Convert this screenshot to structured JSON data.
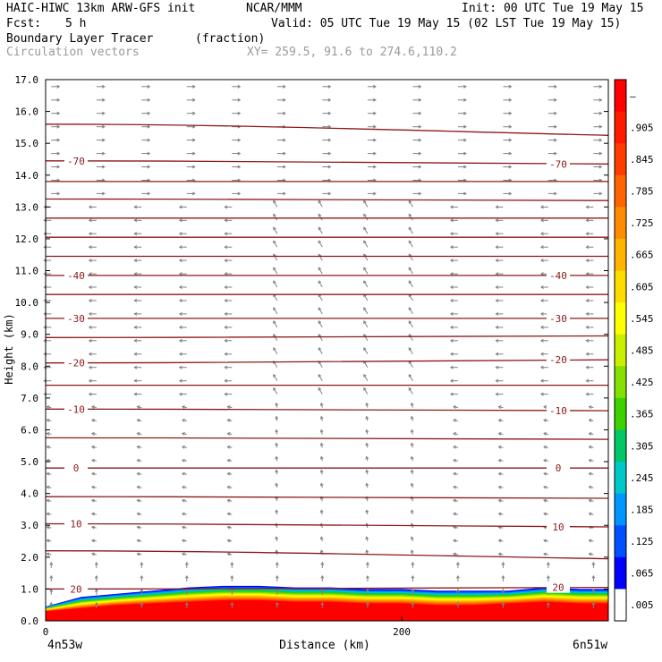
{
  "header": {
    "model": "HAIC-HIWC 13km ARW-GFS init",
    "org": "NCAR/MMM",
    "init": "Init: 00 UTC Tue 19 May 15",
    "fcst_label": "Fcst:",
    "fcst_value": "5 h",
    "valid": "Valid: 05 UTC Tue 19 May 15 (02 LST Tue 19 May 15)",
    "field": "Boundary Layer Tracer",
    "units": "(fraction)",
    "overlay": "Circulation vectors",
    "xy": "XY= 259.5, 91.6 to 274.6,110.2"
  },
  "chart_data": {
    "type": "heatmap",
    "title": "Boundary Layer Tracer",
    "xlabel": "Distance (km)",
    "ylabel": "Height (km)",
    "xlim": [
      0,
      316
    ],
    "ylim": [
      0,
      17
    ],
    "x_ticks": [
      {
        "value": 0,
        "label": "0"
      },
      {
        "value": 200,
        "label": "200"
      }
    ],
    "x_endpoints": {
      "left": "4n53w",
      "right": "6n51w"
    },
    "y_ticks": [
      {
        "value": 0,
        "label": "0.0"
      },
      {
        "value": 1,
        "label": "1.0"
      },
      {
        "value": 2,
        "label": "2.0"
      },
      {
        "value": 3,
        "label": "3.0"
      },
      {
        "value": 4,
        "label": "4.0"
      },
      {
        "value": 5,
        "label": "5.0"
      },
      {
        "value": 6,
        "label": "6.0"
      },
      {
        "value": 7,
        "label": "7.0"
      },
      {
        "value": 8,
        "label": "8.0"
      },
      {
        "value": 9,
        "label": "9.0"
      },
      {
        "value": 10,
        "label": "10.0"
      },
      {
        "value": 11,
        "label": "11.0"
      },
      {
        "value": 12,
        "label": "12.0"
      },
      {
        "value": 13,
        "label": "13.0"
      },
      {
        "value": 14,
        "label": "14.0"
      },
      {
        "value": 15,
        "label": "15.0"
      },
      {
        "value": 16,
        "label": "16.0"
      },
      {
        "value": 17,
        "label": "17.0"
      }
    ],
    "colorbar": {
      "labels": [
        "–",
        ".905",
        ".845",
        ".785",
        ".725",
        ".665",
        ".605",
        ".545",
        ".485",
        ".425",
        ".365",
        ".305",
        ".245",
        ".185",
        ".125",
        ".065",
        ".005"
      ],
      "colors": [
        "#ff0000",
        "#ff1a00",
        "#ff3c00",
        "#ff6400",
        "#ff8c00",
        "#ffb400",
        "#ffdc00",
        "#ffff00",
        "#c8f000",
        "#82e100",
        "#3cd200",
        "#00c864",
        "#00c8c8",
        "#0096ff",
        "#0050ff",
        "#0000ff",
        "#ffffff"
      ]
    },
    "tracer_top": [
      [
        0,
        0.45
      ],
      [
        20,
        0.75
      ],
      [
        40,
        0.85
      ],
      [
        60,
        0.95
      ],
      [
        80,
        1.05
      ],
      [
        100,
        1.1
      ],
      [
        120,
        1.1
      ],
      [
        140,
        1.05
      ],
      [
        160,
        1.05
      ],
      [
        180,
        1.0
      ],
      [
        200,
        1.0
      ],
      [
        220,
        0.95
      ],
      [
        240,
        0.95
      ],
      [
        260,
        0.95
      ],
      [
        280,
        1.05
      ],
      [
        300,
        1.0
      ],
      [
        316,
        1.0
      ]
    ],
    "tracer_red_top": [
      [
        0,
        0.3
      ],
      [
        20,
        0.4
      ],
      [
        40,
        0.5
      ],
      [
        60,
        0.55
      ],
      [
        80,
        0.6
      ],
      [
        100,
        0.65
      ],
      [
        120,
        0.65
      ],
      [
        140,
        0.6
      ],
      [
        160,
        0.6
      ],
      [
        180,
        0.55
      ],
      [
        200,
        0.55
      ],
      [
        220,
        0.5
      ],
      [
        240,
        0.5
      ],
      [
        260,
        0.55
      ],
      [
        280,
        0.6
      ],
      [
        300,
        0.55
      ],
      [
        316,
        0.55
      ]
    ],
    "isotherms": [
      {
        "label": "20",
        "y0": 1.0,
        "y1": 1.05
      },
      {
        "label": "",
        "y0": 2.2,
        "y1": 1.95
      },
      {
        "label": "10",
        "y0": 3.05,
        "y1": 2.95
      },
      {
        "label": "",
        "y0": 3.9,
        "y1": 3.85
      },
      {
        "label": "0",
        "y0": 4.8,
        "y1": 4.8
      },
      {
        "label": "",
        "y0": 5.75,
        "y1": 5.7
      },
      {
        "label": "-10",
        "y0": 6.65,
        "y1": 6.6
      },
      {
        "label": "",
        "y0": 7.4,
        "y1": 7.4
      },
      {
        "label": "-20",
        "y0": 8.1,
        "y1": 8.2
      },
      {
        "label": "",
        "y0": 8.9,
        "y1": 8.95
      },
      {
        "label": "-30",
        "y0": 9.5,
        "y1": 9.5
      },
      {
        "label": "",
        "y0": 10.25,
        "y1": 10.25
      },
      {
        "label": "-40",
        "y0": 10.85,
        "y1": 10.85
      },
      {
        "label": "",
        "y0": 11.45,
        "y1": 11.45
      },
      {
        "label": "",
        "y0": 12.05,
        "y1": 12.05
      },
      {
        "label": "",
        "y0": 12.65,
        "y1": 12.65
      },
      {
        "label": "",
        "y0": 13.25,
        "y1": 13.2
      },
      {
        "label": "",
        "y0": 13.8,
        "y1": 13.8
      },
      {
        "label": "-70",
        "y0": 14.45,
        "y1": 14.35
      },
      {
        "label": "",
        "y0": 15.6,
        "y1": 15.25
      }
    ],
    "grid": false,
    "colors": {
      "isotherm": "#8b1a1a",
      "vector": "#808080",
      "frame": "#000000"
    }
  }
}
